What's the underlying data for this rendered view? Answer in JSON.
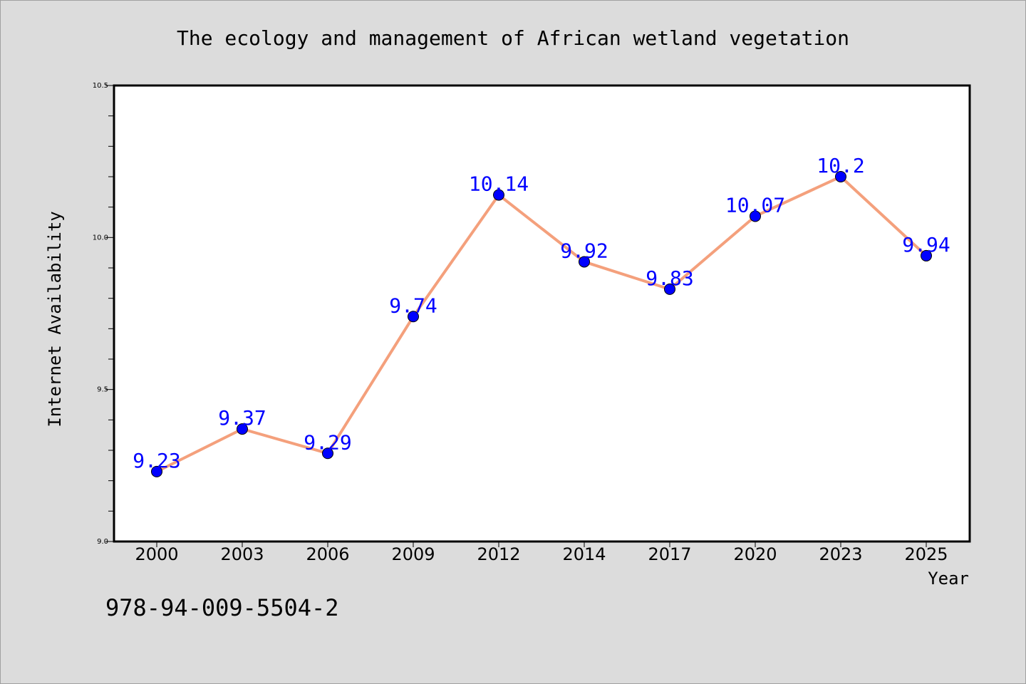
{
  "chart_data": {
    "type": "line",
    "title": "The ecology and management of African wetland vegetation",
    "xlabel": "Year",
    "ylabel": "Internet Availability",
    "categories": [
      "2000",
      "2003",
      "2006",
      "2009",
      "2012",
      "2014",
      "2017",
      "2020",
      "2023",
      "2025"
    ],
    "series": [
      {
        "values": [
          9.23,
          9.37,
          9.29,
          9.74,
          10.14,
          9.92,
          9.83,
          10.07,
          10.2,
          9.94
        ],
        "labels": [
          "9.23",
          "9.37",
          "9.29",
          "9.74",
          "10.14",
          "9.92",
          "9.83",
          "10.07",
          "10.2",
          "9.94"
        ],
        "line_color": "#f4a07c",
        "marker_color": "#0000ff"
      }
    ],
    "ylim": [
      9.0,
      10.5
    ],
    "yticks": [
      "9.0",
      "9.5",
      "10.0",
      "10.5"
    ],
    "grid": false,
    "background": "#dcdcdc",
    "plot_background": "#ffffff",
    "label_color": "#0000ff"
  },
  "footnote": "978-94-009-5504-2"
}
